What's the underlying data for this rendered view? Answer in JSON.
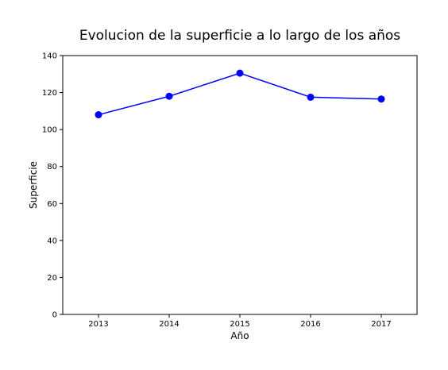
{
  "chart_data": {
    "type": "line",
    "title": "Evolucion de la superficie a lo largo de los años",
    "xlabel": "Año",
    "ylabel": "Superficie",
    "x": [
      "2013",
      "2014",
      "2015",
      "2016",
      "2017"
    ],
    "series": [
      {
        "values": [
          108,
          118,
          130.5,
          117.5,
          116.5
        ],
        "color": "#0000ff",
        "marker": "circle"
      }
    ],
    "ylim": [
      0,
      140
    ],
    "yticks": [
      0,
      20,
      40,
      60,
      80,
      100,
      120,
      140
    ],
    "grid": false,
    "legend": "none"
  }
}
